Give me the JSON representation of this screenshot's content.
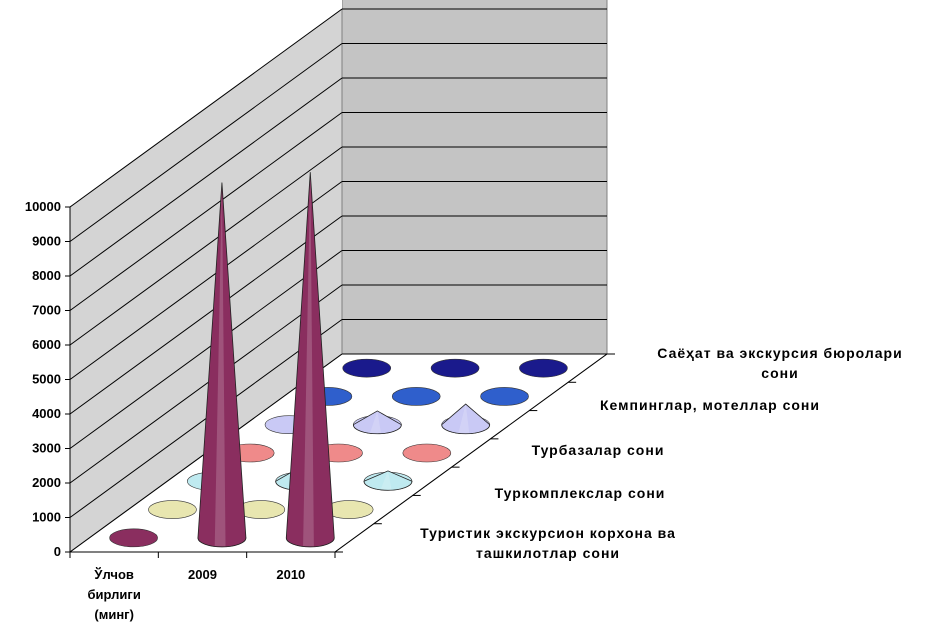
{
  "chart_data": {
    "type": "3d-cone-column",
    "title": "",
    "xlabel": "",
    "ylabel": "",
    "ylim": [
      0,
      10000
    ],
    "y_ticks": [
      "0",
      "1000",
      "2000",
      "3000",
      "4000",
      "5000",
      "6000",
      "7000",
      "8000",
      "9000",
      "10000"
    ],
    "categories": [
      "Ўлчов бирлиги (минг)",
      "2009",
      "2010"
    ],
    "category_lines": [
      [
        "Ўлчов",
        "бирлиги",
        "(минг)"
      ],
      [
        "2009"
      ],
      [
        "2010"
      ]
    ],
    "series": [
      {
        "name": "Туристик экскурсион корхона ва ташкилотлар сони",
        "name_lines": [
          "Туристик экскурсион корхона ва",
          "ташкилотлар сони"
        ],
        "values": [
          0,
          10300,
          10600
        ],
        "color": "#8a2e5f"
      },
      {
        "name": "Туркомплекслар сони",
        "name_lines": [
          "Туркомплекслар сони"
        ],
        "values": [
          0,
          0,
          0
        ],
        "color": "#e8e6b0"
      },
      {
        "name": "Турбазалар сони",
        "name_lines": [
          "Турбазалар сони"
        ],
        "values": [
          0,
          400,
          300
        ],
        "color": "#bfeaf0"
      },
      {
        "name": "Кемпинглар, мотеллар сони",
        "name_lines": [
          "Кемпинглар, мотеллар сони"
        ],
        "values": [
          0,
          0,
          0
        ],
        "color": "#ef8a8a"
      },
      {
        "name": "Саёҳат ва экскурсия бюролари сони",
        "name_lines": [
          "Саёҳат ва экскурсия бюролари",
          "сони"
        ],
        "values": [
          0,
          400,
          600
        ],
        "color": "#c9c9f5"
      }
    ],
    "extra_series_colors": [
      "#2f5fcc",
      "#1a1a8c"
    ],
    "grid": true,
    "legend": "none"
  }
}
